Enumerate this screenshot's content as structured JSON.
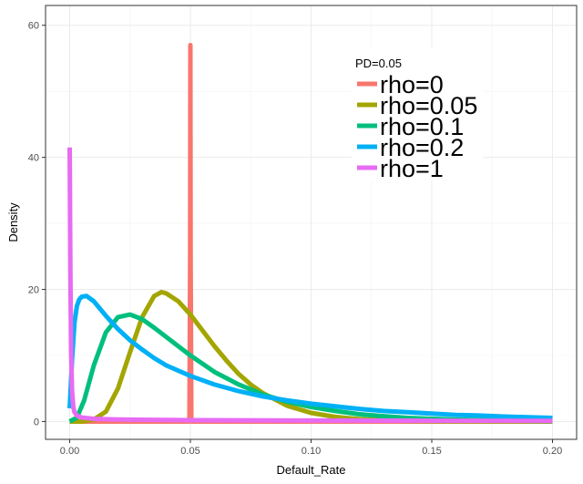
{
  "chart_data": {
    "type": "line",
    "title": "",
    "xlabel": "Default_Rate",
    "ylabel": "Density",
    "xlim": [
      -0.01,
      0.21
    ],
    "ylim": [
      -2.7,
      63
    ],
    "x_ticks": [
      0,
      0.05,
      0.1,
      0.15,
      0.2
    ],
    "x_tick_labels": [
      "0.00",
      "0.05",
      "0.10",
      "0.15",
      "0.20"
    ],
    "y_ticks": [
      0,
      20,
      40,
      60
    ],
    "y_tick_labels": [
      "0",
      "20",
      "40",
      "60"
    ],
    "grid": true,
    "legend": {
      "title": "PD=0.05",
      "placement": "top-right"
    },
    "series": [
      {
        "name": "rho=0",
        "color": "#F8766D",
        "x": [
          0.0,
          0.0496,
          0.0499,
          0.05,
          0.0501,
          0.0504,
          0.2
        ],
        "y": [
          0.0,
          0.0,
          25.0,
          57.0,
          25.0,
          0.0,
          0.0
        ]
      },
      {
        "name": "rho=0.05",
        "color": "#A3A500",
        "x": [
          0.0,
          0.005,
          0.01,
          0.015,
          0.02,
          0.025,
          0.03,
          0.035,
          0.038,
          0.04,
          0.045,
          0.05,
          0.055,
          0.06,
          0.065,
          0.07,
          0.075,
          0.08,
          0.09,
          0.1,
          0.11,
          0.12,
          0.13,
          0.14,
          0.15,
          0.16,
          0.18,
          0.2
        ],
        "y": [
          0.0,
          0.0,
          0.3,
          1.5,
          5.0,
          10.5,
          15.8,
          19.0,
          19.6,
          19.4,
          18.2,
          16.2,
          13.8,
          11.4,
          9.2,
          7.2,
          5.6,
          4.3,
          2.4,
          1.3,
          0.7,
          0.35,
          0.18,
          0.09,
          0.05,
          0.02,
          0.01,
          0.0
        ]
      },
      {
        "name": "rho=0.1",
        "color": "#00BF7D",
        "x": [
          0.0,
          0.003,
          0.006,
          0.01,
          0.015,
          0.02,
          0.025,
          0.03,
          0.035,
          0.04,
          0.045,
          0.05,
          0.06,
          0.07,
          0.08,
          0.09,
          0.1,
          0.11,
          0.12,
          0.13,
          0.14,
          0.15,
          0.16,
          0.18,
          0.2
        ],
        "y": [
          0.0,
          0.6,
          3.2,
          8.5,
          13.5,
          15.8,
          16.2,
          15.5,
          14.2,
          12.8,
          11.4,
          10.0,
          7.5,
          5.6,
          4.1,
          3.0,
          2.2,
          1.6,
          1.1,
          0.8,
          0.55,
          0.4,
          0.28,
          0.14,
          0.07
        ]
      },
      {
        "name": "rho=0.2",
        "color": "#00B0F6",
        "x": [
          0.0,
          0.001,
          0.002,
          0.003,
          0.004,
          0.005,
          0.007,
          0.01,
          0.015,
          0.02,
          0.025,
          0.03,
          0.035,
          0.04,
          0.05,
          0.06,
          0.07,
          0.08,
          0.09,
          0.1,
          0.11,
          0.12,
          0.13,
          0.14,
          0.15,
          0.16,
          0.17,
          0.18,
          0.19,
          0.2
        ],
        "y": [
          2.0,
          9.5,
          15.0,
          17.5,
          18.5,
          18.9,
          19.0,
          18.2,
          16.0,
          14.0,
          12.3,
          10.9,
          9.6,
          8.5,
          6.9,
          5.6,
          4.6,
          3.8,
          3.2,
          2.7,
          2.3,
          1.9,
          1.6,
          1.4,
          1.2,
          1.0,
          0.9,
          0.75,
          0.65,
          0.55
        ]
      },
      {
        "name": "rho=1",
        "color": "#E76BF3",
        "x": [
          0.0,
          0.0003,
          0.0006,
          0.001,
          0.0015,
          0.002,
          0.003,
          0.005,
          0.01,
          0.02,
          0.05,
          0.1,
          0.15,
          0.2
        ],
        "y": [
          41.5,
          22.0,
          10.0,
          4.5,
          2.2,
          1.4,
          0.9,
          0.6,
          0.4,
          0.3,
          0.2,
          0.15,
          0.12,
          0.1
        ]
      }
    ]
  }
}
